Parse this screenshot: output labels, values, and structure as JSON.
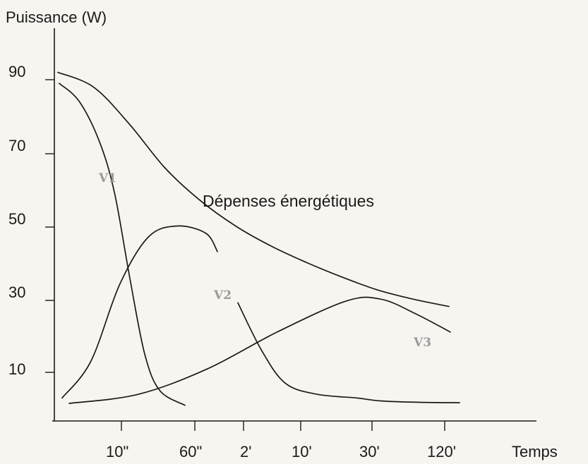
{
  "chart_data": {
    "type": "line",
    "ylabel": "Puissance (W)",
    "xlabel": "Temps",
    "y_ticks": [
      "90",
      "70",
      "50",
      "30",
      "10"
    ],
    "y_tick_values": [
      90,
      70,
      50,
      30,
      10
    ],
    "x_ticks": [
      "10\"",
      "60\"",
      "2'",
      "10'",
      "30'",
      "120'"
    ],
    "ylim": [
      -5,
      100
    ],
    "annotation": "Dépenses énergétiques",
    "series": [
      {
        "name": "Dépenses énergétiques",
        "x": [
          0,
          0.5,
          1,
          1.5,
          2,
          2.5,
          3,
          3.5,
          4,
          4.5,
          5,
          5.5
        ],
        "y": [
          92,
          88,
          78,
          66,
          57,
          50,
          44.5,
          40,
          36,
          32.5,
          30,
          28
        ]
      },
      {
        "name": "V1",
        "x": [
          0,
          0.4,
          0.8,
          1.1,
          1.4,
          1.7,
          2.0,
          2.5
        ],
        "y": [
          89,
          84,
          73,
          59,
          36,
          15,
          5,
          1
        ]
      },
      {
        "name": "V2",
        "x": [
          0,
          0.5,
          1,
          1.5,
          2,
          2.5,
          2.7
        ],
        "y": [
          3,
          13,
          34,
          47,
          50,
          48,
          43
        ]
      },
      {
        "name": "V2",
        "x": [
          3.2,
          3.5,
          3.8,
          4.2,
          4.7,
          5.0,
          5.5,
          6.0
        ],
        "y": [
          29,
          16,
          7,
          4,
          3,
          2.2,
          1.8,
          1.7
        ]
      },
      {
        "name": "V3",
        "x": [
          0,
          1,
          2,
          3,
          4,
          4.5,
          5,
          5.5
        ],
        "y": [
          1.5,
          4,
          11,
          21,
          29.5,
          30,
          26,
          21
        ]
      }
    ]
  }
}
